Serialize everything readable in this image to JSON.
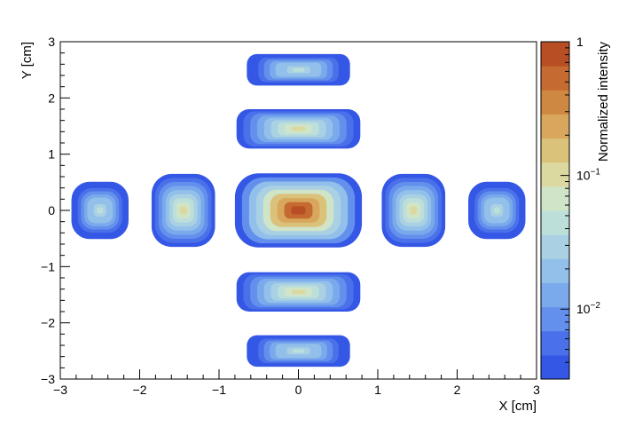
{
  "chart_data": {
    "type": "heatmap",
    "title": "",
    "xlabel": "X [cm]",
    "ylabel": "Y [cm]",
    "xlim": [
      -3,
      3
    ],
    "ylim": [
      -3,
      3
    ],
    "x_ticks": [
      "−3",
      "−2",
      "−1",
      "0",
      "1",
      "2",
      "3"
    ],
    "y_ticks": [
      "−3",
      "−2",
      "−1",
      "0",
      "1",
      "2",
      "3"
    ],
    "colorbar": {
      "label": "Normalized intensity",
      "scale": "log",
      "range": [
        0.003,
        1
      ],
      "tick_labels": [
        {
          "value": 1,
          "base": "1",
          "exp": ""
        },
        {
          "value": 0.1,
          "base": "10",
          "exp": "−1"
        },
        {
          "value": 0.01,
          "base": "10",
          "exp": "−2"
        }
      ],
      "colors": [
        "#3557e6",
        "#4a71e9",
        "#6290ec",
        "#7aa9ec",
        "#93c0ea",
        "#a9d1e3",
        "#bddfda",
        "#d0e4c8",
        "#dcd9a0",
        "#dbc27a",
        "#d8a65c",
        "#cf8842",
        "#c56a30",
        "#b84e24"
      ]
    },
    "lobes": [
      {
        "cx": 0,
        "cy": 0,
        "w": 1.6,
        "h": 1.32,
        "peak": 1.0
      },
      {
        "cx": 0,
        "cy": 1.45,
        "w": 1.56,
        "h": 0.7,
        "peak": 0.12
      },
      {
        "cx": 0,
        "cy": -1.45,
        "w": 1.56,
        "h": 0.7,
        "peak": 0.12
      },
      {
        "cx": 1.45,
        "cy": 0,
        "w": 0.8,
        "h": 1.3,
        "peak": 0.12
      },
      {
        "cx": -1.45,
        "cy": 0,
        "w": 0.8,
        "h": 1.3,
        "peak": 0.12
      },
      {
        "cx": 0,
        "cy": 2.5,
        "w": 1.3,
        "h": 0.56,
        "peak": 0.04
      },
      {
        "cx": 0,
        "cy": -2.5,
        "w": 1.3,
        "h": 0.56,
        "peak": 0.04
      },
      {
        "cx": 2.5,
        "cy": 0,
        "w": 0.72,
        "h": 1.02,
        "peak": 0.04
      },
      {
        "cx": -2.5,
        "cy": 0,
        "w": 0.72,
        "h": 1.02,
        "peak": 0.04
      }
    ]
  }
}
